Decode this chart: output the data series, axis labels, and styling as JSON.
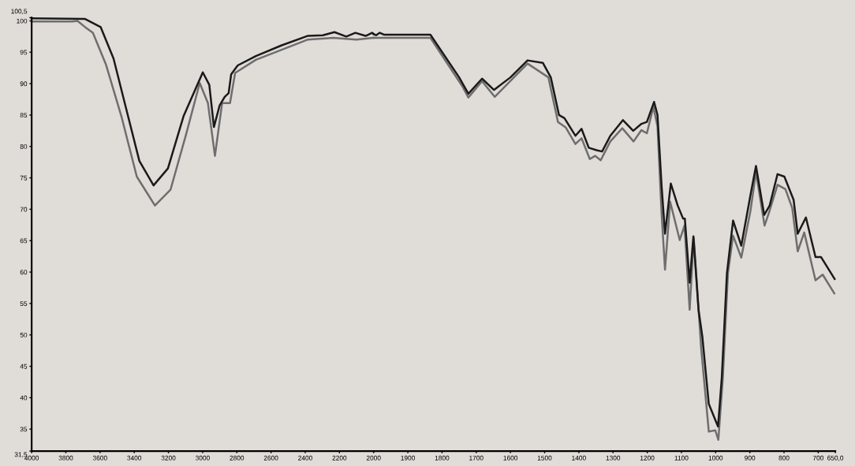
{
  "chart_data": [
    {
      "type": "line",
      "xlim": [
        4000,
        2000
      ],
      "ylim": [
        31.5,
        100.5
      ],
      "xticks": [
        4000,
        3800,
        3600,
        3400,
        3200,
        3000,
        2800,
        2600,
        2400,
        2200,
        2000
      ],
      "yticks": [
        {
          "value": 31.5,
          "label": "31,5"
        },
        35,
        40,
        45,
        50,
        55,
        60,
        65,
        70,
        75,
        80,
        85,
        90,
        95,
        100,
        {
          "value": 100.5,
          "label": "100,5"
        }
      ],
      "grid": false,
      "legend": false,
      "marker": "none",
      "line_style": "solid",
      "series": [
        {
          "color": "#6e6e6e",
          "x": [
            4000,
            3763,
            3732,
            3687,
            3642,
            3566,
            3475,
            3385,
            3279,
            3188,
            3097,
            3017,
            2969,
            2928,
            2886,
            2840,
            2810,
            2689,
            2538,
            2387,
            2236,
            2100,
            2000
          ],
          "values": [
            99.9,
            99.9,
            100.0,
            99.0,
            98.1,
            93.1,
            84.8,
            75.2,
            70.6,
            73.1,
            81.9,
            90.1,
            86.9,
            78.5,
            86.9,
            86.9,
            91.7,
            93.8,
            95.4,
            97.0,
            97.3,
            97.0,
            97.3
          ]
        },
        {
          "color": "#1a1a1a",
          "x": [
            4000,
            3687,
            3596,
            3521,
            3447,
            3370,
            3287,
            3203,
            3112,
            2999,
            2961,
            2934,
            2901,
            2871,
            2848,
            2833,
            2795,
            2689,
            2538,
            2387,
            2297,
            2229,
            2160,
            2107,
            2047,
            2009,
            2000
          ],
          "values": [
            100.4,
            100.3,
            99.0,
            94.0,
            86.0,
            77.7,
            73.8,
            76.5,
            84.8,
            91.8,
            89.8,
            83.1,
            86.5,
            87.9,
            88.5,
            91.5,
            92.9,
            94.4,
            96.1,
            97.6,
            97.7,
            98.2,
            97.5,
            98.1,
            97.6,
            98.1,
            97.9
          ]
        }
      ]
    },
    {
      "type": "line",
      "xlim": [
        2000,
        650
      ],
      "ylim": [
        31.5,
        100.5
      ],
      "tick_labels": "x",
      "xticks": [
        1900,
        1800,
        1700,
        1600,
        1500,
        1400,
        1300,
        1200,
        1100,
        1000,
        900,
        800,
        700,
        {
          "value": 650,
          "label": "650,0"
        }
      ],
      "grid": false,
      "legend": false,
      "marker": "none",
      "line_style": "solid",
      "series": [
        {
          "color": "#6e6e6e",
          "x": [
            2000,
            1997,
            1834,
            1742,
            1723,
            1683,
            1646,
            1550,
            1489,
            1461,
            1438,
            1410,
            1392,
            1368,
            1352,
            1336,
            1308,
            1273,
            1240,
            1217,
            1201,
            1182,
            1170,
            1158,
            1148,
            1133,
            1105,
            1091,
            1076,
            1064,
            1042,
            1020,
            1001,
            992,
            979,
            964,
            949,
            925,
            898,
            882,
            857,
            842,
            819,
            796,
            776,
            760,
            741,
            708,
            687,
            653
          ],
          "values": [
            97.3,
            97.3,
            97.3,
            89.7,
            87.8,
            90.4,
            87.9,
            93.2,
            91.0,
            83.9,
            83.0,
            80.4,
            81.3,
            78.0,
            78.5,
            77.8,
            80.8,
            82.9,
            80.8,
            82.6,
            82.1,
            86.3,
            83.2,
            69.3,
            60.4,
            71.2,
            65.1,
            67.4,
            54.0,
            65.4,
            47.7,
            34.6,
            34.8,
            33.3,
            43.1,
            59.8,
            65.8,
            62.3,
            69.8,
            75.9,
            67.4,
            69.8,
            73.9,
            73.2,
            70.2,
            63.3,
            66.3,
            58.7,
            59.6,
            56.6
          ]
        },
        {
          "color": "#1a1a1a",
          "x": [
            2000,
            1993,
            1982,
            1970,
            1834,
            1750,
            1723,
            1683,
            1648,
            1600,
            1550,
            1505,
            1482,
            1458,
            1442,
            1410,
            1392,
            1371,
            1348,
            1332,
            1308,
            1271,
            1241,
            1217,
            1201,
            1180,
            1170,
            1158,
            1148,
            1131,
            1111,
            1095,
            1090,
            1076,
            1065,
            1050,
            1039,
            1020,
            993,
            982,
            967,
            949,
            925,
            898,
            882,
            858,
            842,
            819,
            799,
            772,
            760,
            736,
            708,
            692,
            652
          ],
          "values": [
            97.9,
            97.7,
            98.1,
            97.8,
            97.8,
            91.0,
            88.4,
            90.8,
            89.0,
            91.0,
            93.7,
            93.3,
            91.0,
            85.0,
            84.5,
            81.7,
            82.8,
            79.8,
            79.4,
            79.2,
            81.7,
            84.2,
            82.5,
            83.6,
            83.9,
            87.1,
            85.0,
            73.7,
            66.1,
            74.1,
            70.6,
            68.5,
            68.5,
            58.3,
            65.7,
            54.0,
            49.8,
            39.0,
            35.4,
            43.2,
            59.8,
            68.2,
            64.2,
            72.3,
            76.9,
            69.1,
            70.6,
            75.6,
            75.2,
            71.5,
            66.1,
            68.7,
            62.4,
            62.4,
            58.9
          ]
        }
      ]
    }
  ]
}
